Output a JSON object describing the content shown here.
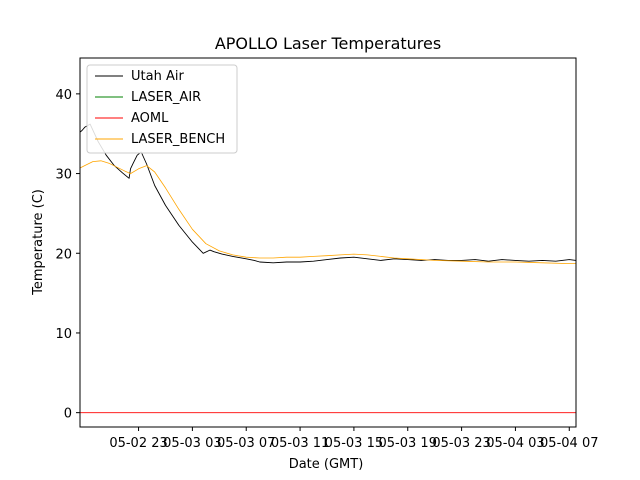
{
  "chart_data": {
    "type": "line",
    "title": "APOLLO Laser Temperatures",
    "xlabel": "Date (GMT)",
    "ylabel": "Temperature (C)",
    "x_unit": "hours since 05-02 23:00 GMT",
    "xlim": [
      -4.35,
      32.5
    ],
    "ylim": [
      -1.8,
      44.5
    ],
    "x_ticks": [
      {
        "x": 0,
        "label": "05-02 23"
      },
      {
        "x": 4,
        "label": "05-03 03"
      },
      {
        "x": 8,
        "label": "05-03 07"
      },
      {
        "x": 12,
        "label": "05-03 11"
      },
      {
        "x": 16,
        "label": "05-03 15"
      },
      {
        "x": 20,
        "label": "05-03 19"
      },
      {
        "x": 24,
        "label": "05-03 23"
      },
      {
        "x": 28,
        "label": "05-04 03"
      },
      {
        "x": 32,
        "label": "05-04 07"
      }
    ],
    "y_ticks": [
      0,
      10,
      20,
      30,
      40
    ],
    "grid": false,
    "legend_position": "top-left",
    "series": [
      {
        "name": "Utah Air",
        "color": "#000000",
        "x": [
          -4.35,
          -4.2,
          -4.0,
          -3.6,
          -3.0,
          -2.4,
          -1.8,
          -1.2,
          -0.7,
          -0.6,
          -0.4,
          -0.1,
          0.2,
          0.6,
          1.2,
          2.0,
          3.0,
          4.0,
          4.8,
          5.3,
          5.6,
          6.2,
          7.0,
          8.0,
          8.6,
          9.0,
          10.0,
          11.0,
          12.0,
          13.0,
          14.0,
          15.0,
          16.0,
          17.0,
          18.0,
          19.0,
          20.0,
          21.0,
          22.0,
          23.0,
          24.0,
          25.0,
          26.0,
          27.0,
          28.0,
          29.0,
          30.0,
          31.0,
          32.0,
          32.5
        ],
        "y": [
          35.2,
          35.4,
          35.8,
          36.2,
          34.0,
          32.3,
          31.0,
          30.1,
          29.4,
          30.6,
          31.3,
          32.3,
          32.7,
          31.2,
          28.5,
          26.0,
          23.5,
          21.4,
          20.0,
          20.4,
          20.2,
          19.9,
          19.6,
          19.3,
          19.1,
          18.9,
          18.8,
          18.9,
          18.9,
          19.0,
          19.2,
          19.4,
          19.5,
          19.3,
          19.1,
          19.3,
          19.2,
          19.1,
          19.2,
          19.1,
          19.1,
          19.2,
          19.0,
          19.2,
          19.1,
          19.0,
          19.1,
          19.0,
          19.2,
          19.1
        ]
      },
      {
        "name": "LASER_AIR",
        "color": "#008000",
        "x": [],
        "y": []
      },
      {
        "name": "AOML",
        "color": "#ff0000",
        "x": [
          -4.35,
          32.5
        ],
        "y": [
          0,
          0
        ]
      },
      {
        "name": "LASER_BENCH",
        "color": "#ffa500",
        "x": [
          -4.35,
          -4.0,
          -3.4,
          -2.8,
          -2.2,
          -1.6,
          -1.0,
          -0.6,
          0.0,
          0.6,
          1.2,
          2.0,
          3.0,
          4.0,
          5.0,
          6.0,
          7.0,
          8.0,
          9.0,
          10.0,
          11.0,
          12.0,
          13.0,
          14.0,
          15.0,
          16.0,
          17.0,
          18.0,
          19.0,
          20.0,
          22.0,
          24.0,
          26.0,
          28.0,
          30.0,
          32.0,
          32.5
        ],
        "y": [
          30.7,
          31.0,
          31.5,
          31.6,
          31.3,
          30.8,
          30.3,
          30.0,
          30.6,
          31.0,
          30.2,
          28.2,
          25.5,
          23.0,
          21.2,
          20.3,
          19.8,
          19.5,
          19.4,
          19.4,
          19.5,
          19.5,
          19.6,
          19.7,
          19.8,
          19.9,
          19.8,
          19.6,
          19.4,
          19.3,
          19.1,
          19.0,
          18.9,
          18.9,
          18.8,
          18.7,
          18.7
        ]
      }
    ]
  }
}
